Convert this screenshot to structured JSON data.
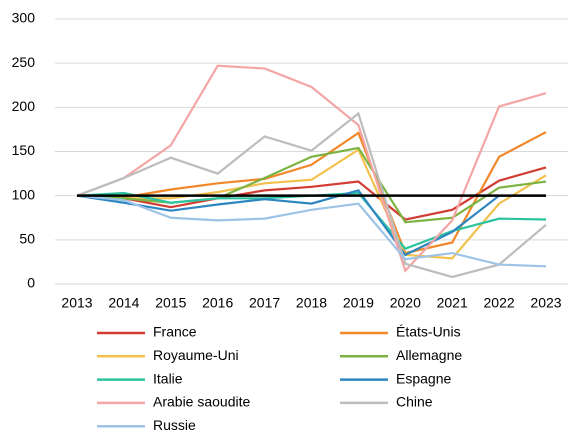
{
  "chart_data": {
    "type": "line",
    "categories": [
      "2013",
      "2014",
      "2015",
      "2016",
      "2017",
      "2018",
      "2019",
      "2020",
      "2021",
      "2022",
      "2023"
    ],
    "series": [
      {
        "name": "France",
        "color": "#d13b32",
        "values": [
          100,
          97,
          87,
          97,
          106,
          110,
          116,
          73,
          84,
          117,
          132
        ]
      },
      {
        "name": "États-Unis",
        "color": "#f0882a",
        "values": [
          100,
          98,
          107,
          114,
          119,
          135,
          171,
          35,
          47,
          144,
          172
        ]
      },
      {
        "name": "Royaume-Uni",
        "color": "#f2c14e",
        "values": [
          100,
          97,
          97,
          104,
          114,
          118,
          152,
          33,
          29,
          91,
          123
        ]
      },
      {
        "name": "Allemagne",
        "color": "#7cb342",
        "values": [
          100,
          97,
          92,
          97,
          120,
          144,
          154,
          70,
          75,
          109,
          116
        ]
      },
      {
        "name": "Italie",
        "color": "#2cc4a0",
        "values": [
          100,
          103,
          92,
          97,
          97,
          100,
          103,
          40,
          60,
          74,
          73
        ]
      },
      {
        "name": "Espagne",
        "color": "#2e86c1",
        "values": [
          100,
          92,
          83,
          90,
          96,
          91,
          106,
          33,
          59,
          100,
          100
        ]
      },
      {
        "name": "Arabie saoudite",
        "color": "#f4a6a6",
        "values": [
          100,
          120,
          157,
          247,
          244,
          223,
          180,
          15,
          72,
          201,
          216
        ]
      },
      {
        "name": "Chine",
        "color": "#bdbdbd",
        "values": [
          100,
          120,
          143,
          125,
          167,
          151,
          193,
          23,
          8,
          22,
          67
        ]
      },
      {
        "name": "Russie",
        "color": "#9dc3e6",
        "values": [
          100,
          95,
          75,
          72,
          74,
          84,
          91,
          28,
          35,
          22,
          20
        ]
      }
    ],
    "reference_line": 100,
    "ylim": [
      0,
      300
    ],
    "yticks": [
      0,
      50,
      100,
      150,
      200,
      250,
      300
    ],
    "grid": true
  }
}
